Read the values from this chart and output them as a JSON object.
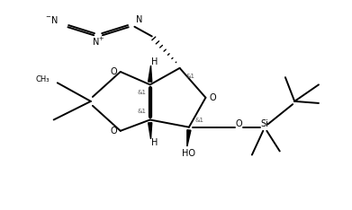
{
  "background": "#ffffff",
  "line_color": "#000000",
  "line_width": 1.4,
  "figure_width": 3.91,
  "figure_height": 2.34,
  "dpi": 100,
  "xlim": [
    0,
    9.5
  ],
  "ylim": [
    0,
    5.5
  ]
}
